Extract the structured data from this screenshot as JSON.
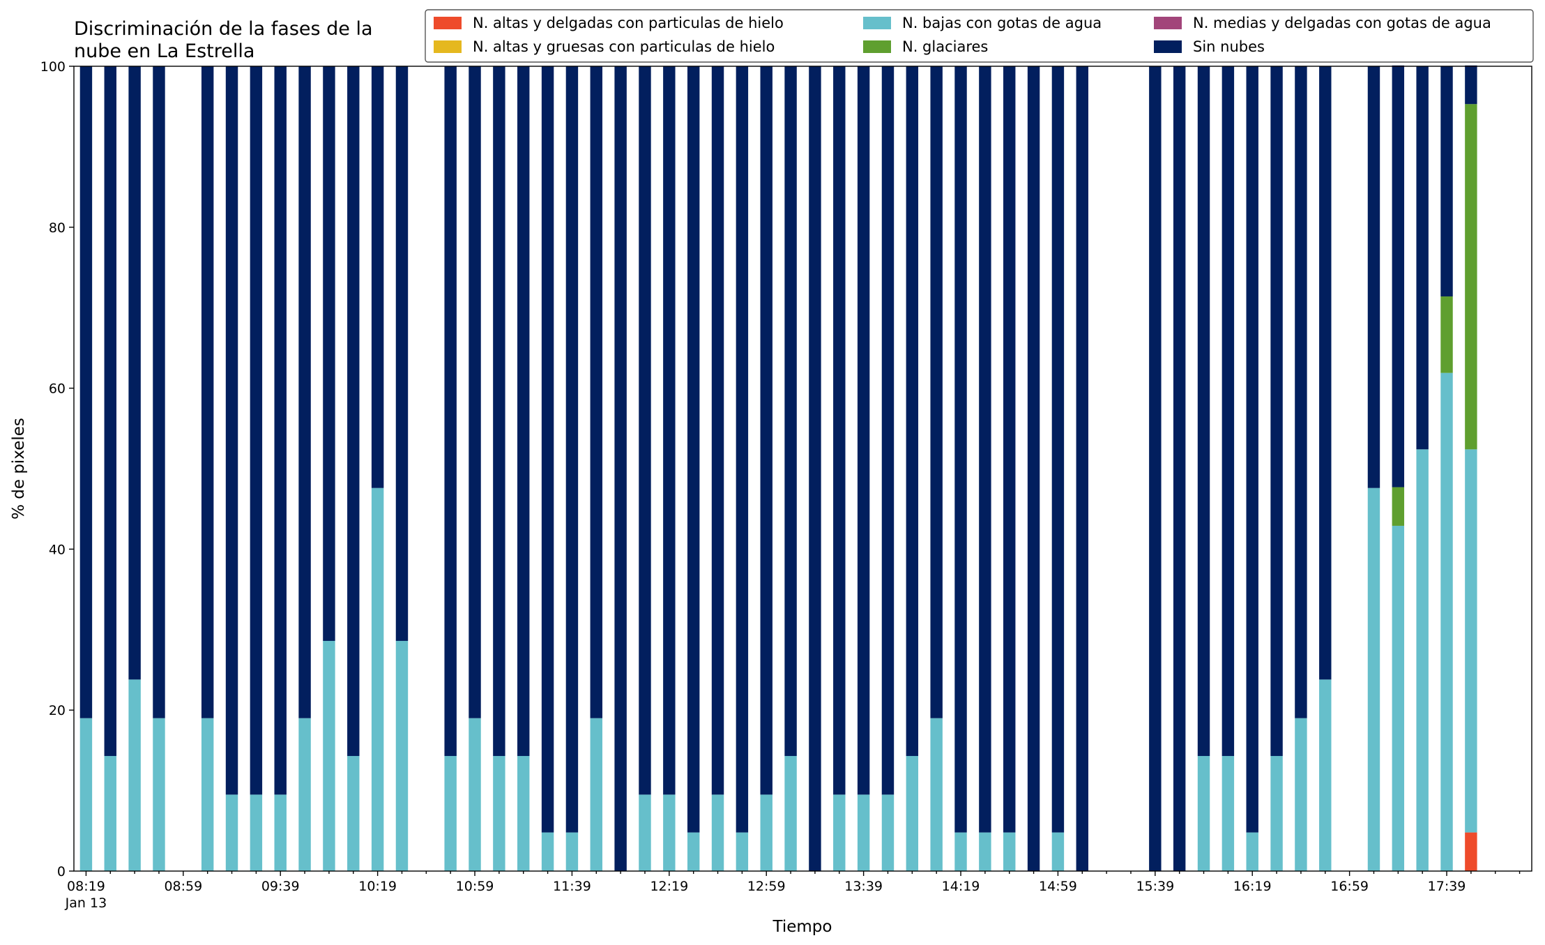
{
  "chart_data": {
    "type": "stacked_bar",
    "title": [
      "Discriminación de la fases de la",
      "nube en La Estrella"
    ],
    "xlabel": "Tiempo",
    "ylabel": "% de pixeles",
    "x_date_label": "Jan 13",
    "categories": [
      "08:19",
      null,
      null,
      null,
      "08:59",
      null,
      null,
      null,
      "09:39",
      null,
      null,
      null,
      "10:19",
      null,
      null,
      null,
      "10:59",
      null,
      null,
      null,
      "11:39",
      null,
      null,
      null,
      "12:19",
      null,
      null,
      null,
      "12:59",
      null,
      null,
      null,
      "13:39",
      null,
      null,
      null,
      "14:19",
      null,
      null,
      null,
      "14:59",
      null,
      null,
      null,
      "15:39",
      null,
      null,
      null,
      "16:19",
      null,
      null,
      null,
      "16:59",
      null,
      null,
      null,
      "17:39",
      null,
      null
    ],
    "ylim": [
      0,
      100
    ],
    "yticks": [
      0,
      20,
      40,
      60,
      80,
      100
    ],
    "legend": "upper right",
    "series": [
      {
        "name": "N. altas y delgadas con particulas de hielo",
        "color": "#ee4b2b",
        "values": [
          0,
          0,
          0,
          0,
          null,
          0,
          0,
          0,
          0,
          0,
          0,
          0,
          0,
          0,
          null,
          0,
          0,
          0,
          0,
          0,
          0,
          0,
          0,
          0,
          0,
          0,
          0,
          0,
          0,
          0,
          0,
          0,
          0,
          0,
          0,
          0,
          0,
          0,
          0,
          0,
          0,
          0,
          null,
          null,
          0,
          0,
          0,
          0,
          0,
          0,
          0,
          0,
          null,
          0,
          0,
          0,
          0,
          4.8,
          null
        ]
      },
      {
        "name": "N. altas y gruesas con particulas de hielo",
        "color": "#e5b81f",
        "values": [
          0,
          0,
          0,
          0,
          null,
          0,
          0,
          0,
          0,
          0,
          0,
          0,
          0,
          0,
          null,
          0,
          0,
          0,
          0,
          0,
          0,
          0,
          0,
          0,
          0,
          0,
          0,
          0,
          0,
          0,
          0,
          0,
          0,
          0,
          0,
          0,
          0,
          0,
          0,
          0,
          0,
          0,
          null,
          null,
          0,
          0,
          0,
          0,
          0,
          0,
          0,
          0,
          null,
          0,
          0,
          0,
          0,
          0,
          null
        ]
      },
      {
        "name": "N. bajas con gotas de agua",
        "color": "#66bfcb",
        "values": [
          19.0,
          14.3,
          23.8,
          19.0,
          null,
          19.0,
          9.5,
          9.5,
          9.5,
          19.0,
          28.6,
          14.3,
          47.6,
          28.6,
          null,
          14.3,
          19.0,
          14.3,
          14.3,
          4.8,
          4.8,
          19.0,
          0,
          9.5,
          9.5,
          4.8,
          9.5,
          4.8,
          9.5,
          14.3,
          0,
          9.5,
          9.5,
          9.5,
          14.3,
          19.0,
          4.8,
          4.8,
          4.8,
          0,
          4.8,
          0,
          null,
          null,
          0,
          0,
          14.3,
          14.3,
          4.8,
          14.3,
          19.0,
          23.8,
          null,
          47.6,
          42.9,
          52.4,
          61.9,
          47.6,
          null
        ]
      },
      {
        "name": "N. glaciares",
        "color": "#5f9f2f",
        "values": [
          0,
          0,
          0,
          0,
          null,
          0,
          0,
          0,
          0,
          0,
          0,
          0,
          0,
          0,
          null,
          0,
          0,
          0,
          0,
          0,
          0,
          0,
          0,
          0,
          0,
          0,
          0,
          0,
          0,
          0,
          0,
          0,
          0,
          0,
          0,
          0,
          0,
          0,
          0,
          0,
          0,
          0,
          null,
          null,
          0,
          0,
          0,
          0,
          0,
          0,
          0,
          0,
          null,
          0,
          4.8,
          0,
          9.5,
          42.9,
          null
        ]
      },
      {
        "name": "N. medias y delgadas con gotas de agua",
        "color": "#a2457a",
        "values": [
          0,
          0,
          0,
          0,
          null,
          0,
          0,
          0,
          0,
          0,
          0,
          0,
          0,
          0,
          null,
          0,
          0,
          0,
          0,
          0,
          0,
          0,
          0,
          0,
          0,
          0,
          0,
          0,
          0,
          0,
          0,
          0,
          0,
          0,
          0,
          0,
          0,
          0,
          0,
          0,
          0,
          0,
          null,
          null,
          0,
          0,
          0,
          0,
          0,
          0,
          0,
          0,
          null,
          0,
          0,
          0,
          0,
          0,
          null
        ]
      },
      {
        "name": "Sin nubes",
        "color": "#021f5e",
        "values": [
          81.0,
          85.7,
          76.2,
          81.0,
          null,
          81.0,
          90.5,
          90.5,
          90.5,
          81.0,
          71.4,
          85.7,
          52.4,
          71.4,
          null,
          85.7,
          81.0,
          85.7,
          85.7,
          95.2,
          95.2,
          81.0,
          100,
          90.5,
          90.5,
          95.2,
          90.5,
          95.2,
          90.5,
          85.7,
          100,
          90.5,
          90.5,
          90.5,
          85.7,
          81.0,
          95.2,
          95.2,
          95.2,
          100,
          95.2,
          100,
          null,
          null,
          100,
          100,
          85.7,
          85.7,
          95.2,
          85.7,
          81.0,
          76.2,
          null,
          52.4,
          52.4,
          47.6,
          28.6,
          4.8,
          null
        ]
      }
    ]
  }
}
